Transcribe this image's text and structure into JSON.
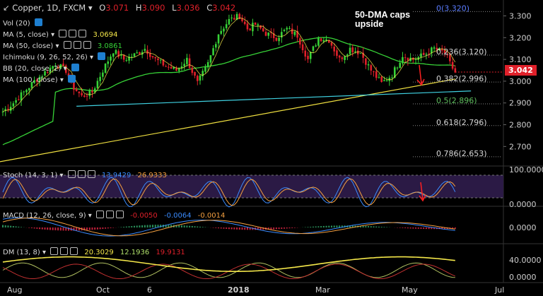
{
  "header": {
    "symbol": "Copper, 1D, FXCM",
    "ohlc": [
      {
        "k": "O",
        "v": "3.071"
      },
      {
        "k": "H",
        "v": "3.090"
      },
      {
        "k": "L",
        "v": "3.036"
      },
      {
        "k": "C",
        "v": "3.042"
      }
    ]
  },
  "indicators": {
    "vol": {
      "label": "Vol (20)"
    },
    "ma5": {
      "label": "MA (5, close)",
      "value": "3.0694",
      "color": "#f5e84a"
    },
    "ma50": {
      "label": "MA (50, close)",
      "value": "3.0861",
      "color": "#37d237"
    },
    "ichimoku": {
      "label": "Ichimoku (9, 26, 52, 26)"
    },
    "bb": {
      "label": "BB (20, close, 2)"
    },
    "ma100": {
      "label": "MA (100, close)"
    }
  },
  "annotation": "50-DMA caps upside",
  "current_price": "3.042",
  "fib_levels": [
    {
      "label": "0(3.320)",
      "price": 3.32,
      "color": "#5a7cff"
    },
    {
      "label": "0.236(3.120)",
      "price": 3.12,
      "color": "#d8d8d8"
    },
    {
      "label": "0.382(2.996)",
      "price": 2.996,
      "color": "#d8d8d8"
    },
    {
      "label": "0.5(2.896)",
      "price": 2.896,
      "color": "#5fbf5f"
    },
    {
      "label": "0.618(2.796)",
      "price": 2.796,
      "color": "#d8d8d8"
    },
    {
      "label": "0.786(2.653)",
      "price": 2.653,
      "color": "#d8d8d8"
    }
  ],
  "stoch": {
    "label": "Stoch (14, 3, 1)",
    "k": "13.9429",
    "d": "26.9333",
    "axis": [
      "100.0000",
      "0.0000"
    ]
  },
  "macd": {
    "label": "MACD (12, 26, close, 9)",
    "hist": "-0.0050",
    "macd": "-0.0064",
    "signal": "-0.0014",
    "axis": [
      "0.0000"
    ]
  },
  "dm": {
    "label": "DM (13, 8)",
    "adx": "20.3029",
    "plus": "12.1936",
    "minus": "19.9131",
    "axis": [
      "40.0000",
      "0.0000"
    ]
  },
  "colors": {
    "up": "#37d237",
    "down": "#e0202a",
    "trend_yellow": "#f0e040",
    "trend_cyan": "#3fd0e0",
    "stoch_fill": "#2b1a45"
  },
  "chart_data": {
    "type": "candlestick",
    "x_ticks": [
      "Aug",
      "Oct",
      "6",
      "2018",
      "Mar",
      "May",
      "Jul"
    ],
    "y_ticks": [
      "3.300",
      "3.200",
      "3.100",
      "3.000",
      "2.900",
      "2.800",
      "2.700"
    ],
    "ylim": [
      2.62,
      3.36
    ],
    "close_trace": [
      [
        0,
        2.86
      ],
      [
        4,
        2.9
      ],
      [
        8,
        2.95
      ],
      [
        12,
        3.0
      ],
      [
        16,
        3.04
      ],
      [
        20,
        3.08
      ],
      [
        24,
        3.05
      ],
      [
        27,
        2.97
      ],
      [
        30,
        2.93
      ],
      [
        34,
        2.95
      ],
      [
        38,
        3.05
      ],
      [
        42,
        3.14
      ],
      [
        46,
        3.1
      ],
      [
        50,
        3.12
      ],
      [
        54,
        3.15
      ],
      [
        58,
        3.1
      ],
      [
        62,
        3.07
      ],
      [
        66,
        3.05
      ],
      [
        70,
        3.1
      ],
      [
        74,
        2.99
      ],
      [
        78,
        3.08
      ],
      [
        82,
        3.22
      ],
      [
        86,
        3.28
      ],
      [
        90,
        3.3
      ],
      [
        93,
        3.24
      ],
      [
        96,
        3.26
      ],
      [
        100,
        3.22
      ],
      [
        104,
        3.2
      ],
      [
        108,
        3.24
      ],
      [
        112,
        3.21
      ],
      [
        116,
        3.1
      ],
      [
        120,
        3.2
      ],
      [
        124,
        3.19
      ],
      [
        128,
        3.1
      ],
      [
        132,
        3.15
      ],
      [
        136,
        3.13
      ],
      [
        140,
        3.05
      ],
      [
        144,
        2.99
      ],
      [
        148,
        3.03
      ],
      [
        152,
        3.12
      ],
      [
        156,
        3.1
      ],
      [
        160,
        3.12
      ],
      [
        164,
        3.15
      ],
      [
        168,
        3.13
      ],
      [
        170,
        3.08
      ],
      [
        172,
        3.04
      ]
    ]
  }
}
